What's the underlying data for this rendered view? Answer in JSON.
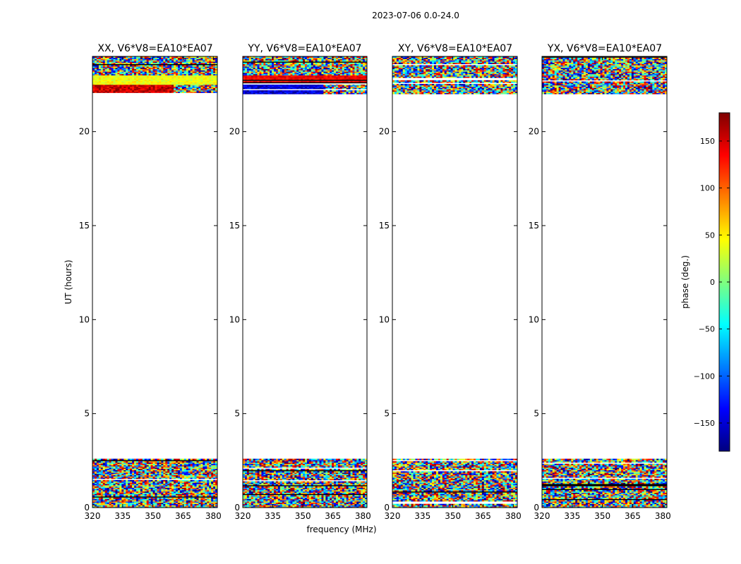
{
  "figure_title": "2023-07-06 0.0-24.0",
  "chart_data": [
    {
      "type": "heatmap",
      "title": "XX, V6*V8=EA10*EA07",
      "xlabel": "",
      "ylabel": "UT (hours)",
      "xlim": [
        320,
        382
      ],
      "ylim": [
        0,
        24
      ],
      "xticks": [
        320,
        335,
        350,
        365,
        380
      ],
      "yticks": [
        0,
        5,
        10,
        15,
        20
      ],
      "data_rows": [
        {
          "from": 0.0,
          "to": 2.6,
          "pattern": "noise"
        },
        {
          "from": 22.0,
          "to": 22.5,
          "pattern": "mixed",
          "base_phase": 150
        },
        {
          "from": 22.5,
          "to": 23.0,
          "pattern": "coherent",
          "base_phase": 40
        },
        {
          "from": 23.0,
          "to": 24.0,
          "pattern": "noise"
        }
      ]
    },
    {
      "type": "heatmap",
      "title": "YY, V6*V8=EA10*EA07",
      "xlabel": "frequency (MHz)",
      "ylabel": "",
      "xlim": [
        320,
        382
      ],
      "ylim": [
        0,
        24
      ],
      "xticks": [
        320,
        335,
        350,
        365,
        380
      ],
      "yticks": [
        0,
        5,
        10,
        15,
        20
      ],
      "data_rows": [
        {
          "from": 0.0,
          "to": 2.6,
          "pattern": "noise"
        },
        {
          "from": 22.0,
          "to": 22.5,
          "pattern": "mixed",
          "base_phase": -150
        },
        {
          "from": 22.5,
          "to": 23.0,
          "pattern": "coherent",
          "base_phase": 140
        },
        {
          "from": 23.0,
          "to": 24.0,
          "pattern": "noise"
        }
      ]
    },
    {
      "type": "heatmap",
      "title": "XY, V6*V8=EA10*EA07",
      "xlabel": "",
      "ylabel": "",
      "xlim": [
        320,
        382
      ],
      "ylim": [
        0,
        24
      ],
      "xticks": [
        320,
        335,
        350,
        365,
        380
      ],
      "yticks": [
        0,
        5,
        10,
        15,
        20
      ],
      "data_rows": [
        {
          "from": 0.0,
          "to": 2.6,
          "pattern": "noise"
        },
        {
          "from": 22.0,
          "to": 24.0,
          "pattern": "noise"
        }
      ]
    },
    {
      "type": "heatmap",
      "title": "YX, V6*V8=EA10*EA07",
      "xlabel": "",
      "ylabel": "",
      "xlim": [
        320,
        382
      ],
      "ylim": [
        0,
        24
      ],
      "xticks": [
        320,
        335,
        350,
        365,
        380
      ],
      "yticks": [
        0,
        5,
        10,
        15,
        20
      ],
      "data_rows": [
        {
          "from": 0.0,
          "to": 2.6,
          "pattern": "noise"
        },
        {
          "from": 22.0,
          "to": 24.0,
          "pattern": "noise"
        }
      ]
    }
  ],
  "colorbar": {
    "label": "phase (deg.)",
    "range": [
      -180,
      180
    ],
    "ticks": [
      150,
      100,
      50,
      0,
      -50,
      -100,
      -150
    ],
    "tick_labels": [
      "150",
      "100",
      "50",
      "0",
      "−50",
      "−100",
      "−150"
    ],
    "colormap": "jet",
    "cmap_stops": [
      "#00007f",
      "#0000ff",
      "#007fff",
      "#00ffff",
      "#7fff7f",
      "#ffff00",
      "#ff7f00",
      "#ff0000",
      "#7f0000"
    ]
  }
}
